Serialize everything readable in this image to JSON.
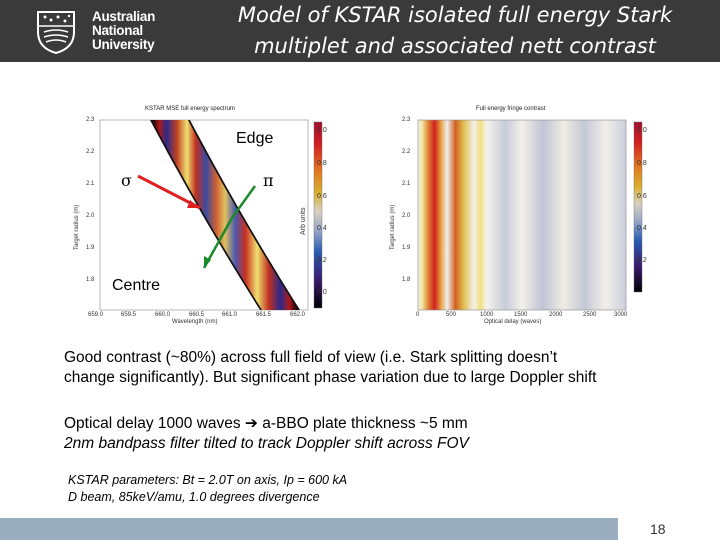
{
  "header": {
    "logo_line1": "Australian",
    "logo_line2": "National",
    "logo_line3": "University",
    "title_line1": "Model of KSTAR isolated full energy Stark",
    "title_line2": "multiplet and associated nett contrast"
  },
  "left_plot": {
    "title": "KSTAR MSE full energy spectrum",
    "ylabel": "Target radius (m)",
    "xlabel": "Wavelength (nm)",
    "y_ticks": [
      "2.3",
      "2.2",
      "2.1",
      "2.0",
      "1.9",
      "1.8"
    ],
    "x_ticks": [
      "659.0",
      "659.5",
      "660.0",
      "660.5",
      "661.0",
      "661.5",
      "662.0"
    ],
    "colorbar_label": "Arb units",
    "colorbar_ticks": [
      "1.0",
      "0.8",
      "0.6",
      "0.4",
      "0.2",
      "0.0"
    ]
  },
  "right_plot": {
    "title": "Full energy fringe contrast",
    "ylabel": "Target radius (m)",
    "xlabel": "Optical delay (waves)",
    "y_ticks": [
      "2.3",
      "2.2",
      "2.1",
      "2.0",
      "1.9",
      "1.8"
    ],
    "x_ticks": [
      "0",
      "500",
      "1000",
      "1500",
      "2000",
      "2500",
      "3000"
    ],
    "colorbar_ticks": [
      "1.0",
      "0.8",
      "0.6",
      "0.4",
      "0.2"
    ]
  },
  "annotations": {
    "edge": "Edge",
    "sigma": "σ",
    "pi": "π",
    "centre": "Centre"
  },
  "text": {
    "p1_line1": "Good contrast (~80%) across full field of view (i.e. Stark splitting doesn’t",
    "p1_line2": "change significantly).  But significant phase variation due to large Doppler shift",
    "p2_line1": "Optical delay 1000 waves  ➔ a-BBO plate thickness ~5 mm",
    "p2_line2": "2nm bandpass filter tilted to track Doppler shift across FOV",
    "params_line1": "KSTAR parameters:  Bt = 2.0T on axis, Ip = 600 kA",
    "params_line2": "D beam, 85keV/amu,  1.0 degrees divergence"
  },
  "footer": {
    "page_number": "18"
  },
  "colors": {
    "header_bg": "#3a3a3a",
    "footer_bg": "#9aaebf",
    "sigma_arrow": "#e02020",
    "pi_arrow": "#1a8a2a"
  }
}
